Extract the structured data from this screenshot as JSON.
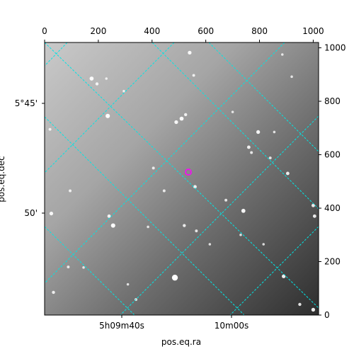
{
  "chart_data": {
    "type": "heatmap",
    "description_kind": "astronomical image with WCS coordinate grid",
    "xlabel": "pos.eq.ra",
    "ylabel": "pos.eq.dec",
    "pixel_axes": {
      "top_ticks": [
        0,
        200,
        400,
        600,
        800,
        1000
      ],
      "right_ticks": [
        0,
        200,
        400,
        600,
        800,
        1000
      ],
      "xlim": [
        0,
        1020
      ],
      "ylim": [
        0,
        1020
      ]
    },
    "world_ticks": {
      "ra_labels": [
        "5h09m40s",
        "10m00s"
      ],
      "dec_labels": [
        "5°45'",
        "50'"
      ]
    },
    "colormap": "gray",
    "grid": true,
    "grid_color": "#00e5e5",
    "marker": {
      "shape": "circle",
      "color": "#ff00ff",
      "x": 535,
      "y": 535
    },
    "stars": [
      {
        "x": 540,
        "y": 982,
        "b": 1.2
      },
      {
        "x": 555,
        "y": 897,
        "b": 0.9
      },
      {
        "x": 175,
        "y": 885,
        "b": 1.3
      },
      {
        "x": 195,
        "y": 865,
        "b": 1.0
      },
      {
        "x": 230,
        "y": 885,
        "b": 0.8
      },
      {
        "x": 295,
        "y": 838,
        "b": 0.8
      },
      {
        "x": 885,
        "y": 975,
        "b": 0.8
      },
      {
        "x": 920,
        "y": 892,
        "b": 0.8
      },
      {
        "x": 235,
        "y": 745,
        "b": 1.4
      },
      {
        "x": 510,
        "y": 735,
        "b": 1.3
      },
      {
        "x": 490,
        "y": 722,
        "b": 1.2
      },
      {
        "x": 525,
        "y": 750,
        "b": 1.0
      },
      {
        "x": 795,
        "y": 685,
        "b": 1.2
      },
      {
        "x": 760,
        "y": 628,
        "b": 1.1
      },
      {
        "x": 855,
        "y": 685,
        "b": 0.8
      },
      {
        "x": 905,
        "y": 530,
        "b": 1.1
      },
      {
        "x": 840,
        "y": 588,
        "b": 0.9
      },
      {
        "x": 770,
        "y": 608,
        "b": 0.9
      },
      {
        "x": 20,
        "y": 695,
        "b": 0.9
      },
      {
        "x": 405,
        "y": 550,
        "b": 0.9
      },
      {
        "x": 560,
        "y": 480,
        "b": 1.1
      },
      {
        "x": 445,
        "y": 465,
        "b": 0.9
      },
      {
        "x": 95,
        "y": 465,
        "b": 0.9
      },
      {
        "x": 740,
        "y": 390,
        "b": 1.3
      },
      {
        "x": 1000,
        "y": 410,
        "b": 1.1
      },
      {
        "x": 1005,
        "y": 370,
        "b": 1.1
      },
      {
        "x": 25,
        "y": 380,
        "b": 1.2
      },
      {
        "x": 240,
        "y": 370,
        "b": 1.1
      },
      {
        "x": 255,
        "y": 335,
        "b": 1.4
      },
      {
        "x": 520,
        "y": 335,
        "b": 1.0
      },
      {
        "x": 565,
        "y": 315,
        "b": 0.9
      },
      {
        "x": 385,
        "y": 330,
        "b": 0.8
      },
      {
        "x": 730,
        "y": 300,
        "b": 0.8
      },
      {
        "x": 815,
        "y": 265,
        "b": 0.8
      },
      {
        "x": 615,
        "y": 265,
        "b": 0.8
      },
      {
        "x": 88,
        "y": 180,
        "b": 0.9
      },
      {
        "x": 485,
        "y": 140,
        "b": 1.9
      },
      {
        "x": 890,
        "y": 145,
        "b": 1.2
      },
      {
        "x": 310,
        "y": 115,
        "b": 0.8
      },
      {
        "x": 33,
        "y": 85,
        "b": 1.0
      },
      {
        "x": 340,
        "y": 58,
        "b": 0.9
      },
      {
        "x": 1000,
        "y": 20,
        "b": 1.2
      },
      {
        "x": 950,
        "y": 40,
        "b": 1.0
      },
      {
        "x": 675,
        "y": 430,
        "b": 0.9
      },
      {
        "x": 145,
        "y": 178,
        "b": 0.8
      },
      {
        "x": 700,
        "y": 760,
        "b": 0.8
      }
    ]
  }
}
